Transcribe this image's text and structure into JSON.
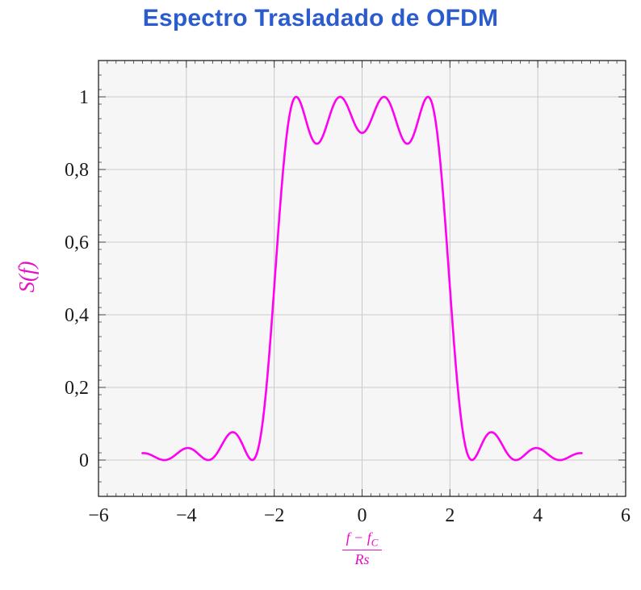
{
  "chart_data": {
    "type": "line",
    "title": "Espectro Trasladado de OFDM",
    "title_color": "#2b5cce",
    "ylabel": "S(f)",
    "xlabel": {
      "num_main": "f − f",
      "num_sub": "C",
      "den": "Rs"
    },
    "label_color": "#e60fc8",
    "plot_background": "#f6f6f6",
    "grid_color": "#c9c9c9",
    "frame_color": "#111111",
    "tick_color": "#444444",
    "tick_label_color": "#1a1a1a",
    "axes": {
      "x_min": -6,
      "x_max": 6,
      "y_min": -0.1,
      "y_max": 1.1,
      "x_minor_step": 0.2,
      "y_minor_step": 0.04,
      "grid": true,
      "legend": false
    },
    "x_ticks": [
      {
        "v": -6,
        "label": "−6"
      },
      {
        "v": -4,
        "label": "−4"
      },
      {
        "v": -2,
        "label": "−2"
      },
      {
        "v": 0,
        "label": "0"
      },
      {
        "v": 2,
        "label": "2"
      },
      {
        "v": 4,
        "label": "4"
      },
      {
        "v": 6,
        "label": "6"
      }
    ],
    "y_ticks": [
      {
        "v": 0,
        "label": "0"
      },
      {
        "v": 0.2,
        "label": "0,2"
      },
      {
        "v": 0.4,
        "label": "0,4"
      },
      {
        "v": 0.6,
        "label": "0,6"
      },
      {
        "v": 0.8,
        "label": "0,8"
      },
      {
        "v": 1,
        "label": "1"
      }
    ],
    "series": [
      {
        "name": "S(f)",
        "color": "#ff00f0",
        "width": 2.6,
        "model": "sum_sinc_squared",
        "subcarrier_centers": [
          -1.5,
          -0.5,
          0.5,
          1.5
        ],
        "x_start": -5,
        "x_end": 5,
        "samples": 500
      }
    ],
    "key_points": [
      {
        "x": -5,
        "y": 0.02
      },
      {
        "x": -4,
        "y": 0.033
      },
      {
        "x": -3,
        "y": 0.074
      },
      {
        "x": -2.5,
        "y": 0
      },
      {
        "x": -2,
        "y": 0.47
      },
      {
        "x": -1.5,
        "y": 1
      },
      {
        "x": -1,
        "y": 0.87
      },
      {
        "x": -0.5,
        "y": 1
      },
      {
        "x": 0,
        "y": 0.9
      },
      {
        "x": 0.5,
        "y": 1
      },
      {
        "x": 1,
        "y": 0.87
      },
      {
        "x": 1.5,
        "y": 1
      },
      {
        "x": 2,
        "y": 0.47
      },
      {
        "x": 2.5,
        "y": 0
      },
      {
        "x": 3,
        "y": 0.074
      },
      {
        "x": 4,
        "y": 0.033
      },
      {
        "x": 5,
        "y": 0.02
      }
    ]
  }
}
